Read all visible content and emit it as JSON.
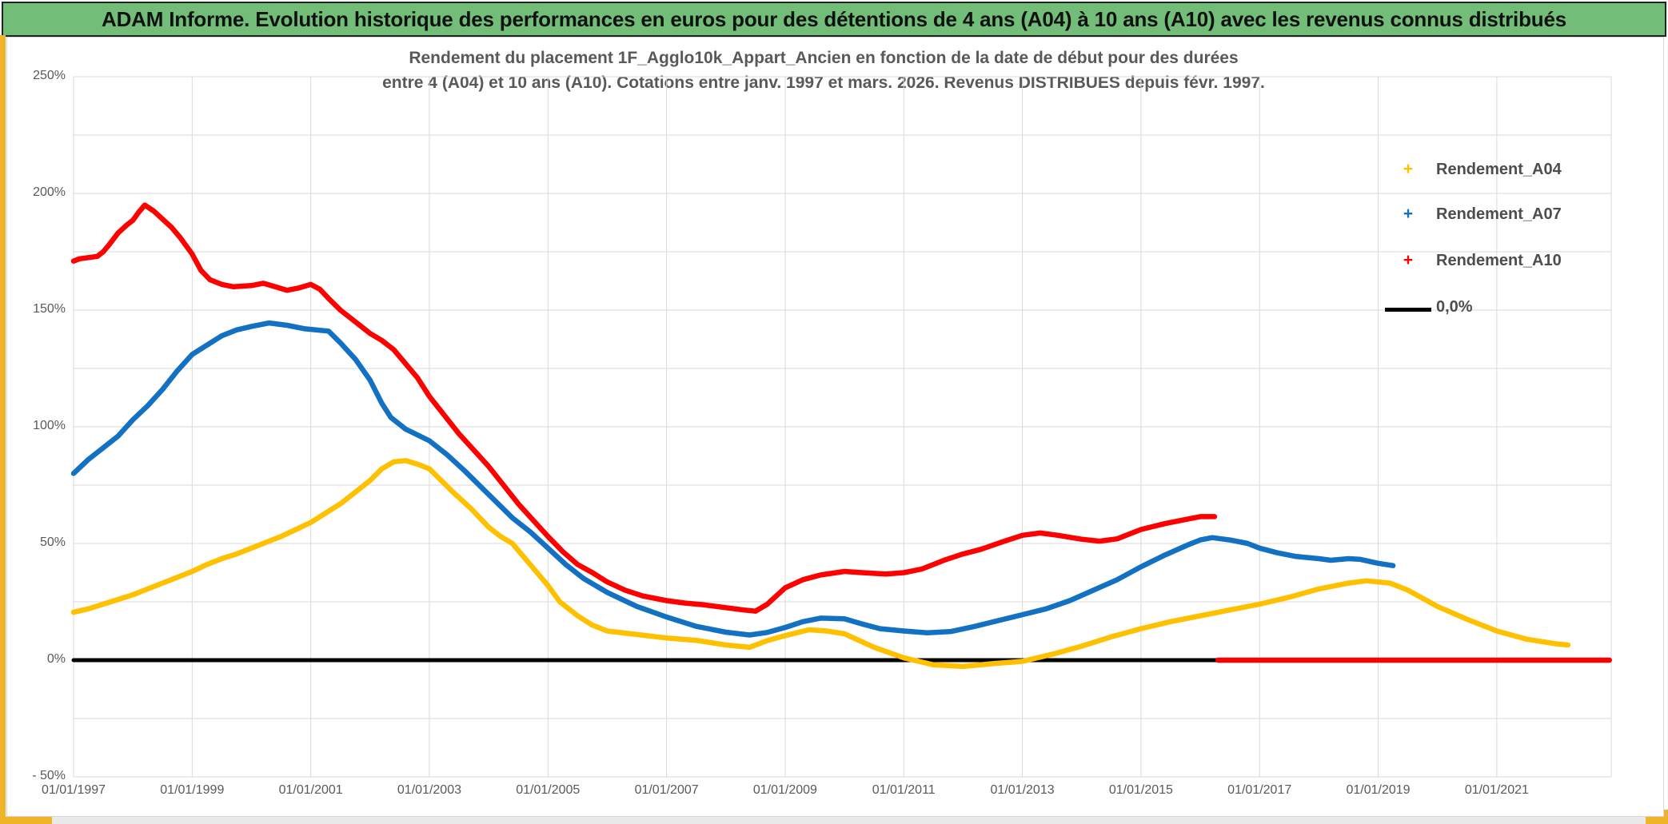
{
  "header": {
    "title": "ADAM Informe. Evolution historique des performances en euros pour des détentions de 4 ans (A04) à 10 ans (A10) avec les revenus connus distribués",
    "bg_color": "#72BE78",
    "border_color": "#222222"
  },
  "accent": {
    "yellow": "#F0B429",
    "frame_gray": "#D8D8D8"
  },
  "chart_data": {
    "type": "line",
    "title_line1": "Rendement du placement 1F_Agglo10k_Appart_Ancien en fonction de la date de début pour des durées",
    "title_line2": "entre 4 (A04) et 10 ans (A10). Cotations entre janv. 1997 et mars. 2026. Revenus DISTRIBUES depuis févr. 1997.",
    "title_color": "#595959",
    "grid_on": true,
    "grid_color": "#D9D9D9",
    "axis_text_color": "#595959",
    "x_axis": {
      "labels": [
        "01/01/1997",
        "01/01/1999",
        "01/01/2001",
        "01/01/2003",
        "01/01/2005",
        "01/01/2007",
        "01/01/2009",
        "01/01/2011",
        "01/01/2013",
        "01/01/2015",
        "01/01/2017",
        "01/01/2019",
        "01/01/2021"
      ],
      "label_years": [
        1997,
        1999,
        2001,
        2003,
        2005,
        2007,
        2009,
        2011,
        2013,
        2015,
        2017,
        2019,
        2021
      ],
      "range_years": [
        1997.0,
        2022.93
      ]
    },
    "y_axis": {
      "labels": [
        "250%",
        "200%",
        "150%",
        "100%",
        "50%",
        "0%",
        "- 50%"
      ],
      "label_values": [
        250,
        200,
        150,
        100,
        50,
        0,
        -50
      ],
      "range_pct": [
        -50,
        250
      ],
      "gridline_step_pct": 25
    },
    "legend_position": "right-top",
    "legend": [
      {
        "label": "Rendement_A04",
        "color": "#FFC000",
        "marker": "+"
      },
      {
        "label": "Rendement_A07",
        "color": "#1371C3",
        "marker": "+"
      },
      {
        "label": "Rendement_A10",
        "color": "#FE0000",
        "marker": "+"
      },
      {
        "label": "0,0%",
        "color": "#000000",
        "marker": "line"
      }
    ],
    "series": [
      {
        "name": "zero-line",
        "color": "#000000",
        "width": 5,
        "points": [
          [
            1997.0,
            0
          ],
          [
            2022.9,
            0
          ]
        ]
      },
      {
        "name": "Rendement_A04",
        "color": "#FFC000",
        "width": 6.5,
        "points": [
          [
            1997.0,
            20.5
          ],
          [
            1997.25,
            22
          ],
          [
            1997.5,
            24
          ],
          [
            1997.75,
            26
          ],
          [
            1998.0,
            28
          ],
          [
            1998.25,
            30.5
          ],
          [
            1998.5,
            33
          ],
          [
            1998.75,
            35.5
          ],
          [
            1999.0,
            38
          ],
          [
            1999.25,
            41
          ],
          [
            1999.5,
            43.5
          ],
          [
            1999.75,
            45.5
          ],
          [
            2000.0,
            48
          ],
          [
            2000.25,
            50.5
          ],
          [
            2000.5,
            53
          ],
          [
            2000.75,
            56
          ],
          [
            2001.0,
            59
          ],
          [
            2001.25,
            63
          ],
          [
            2001.5,
            67
          ],
          [
            2001.75,
            72
          ],
          [
            2002.0,
            77
          ],
          [
            2002.2,
            82
          ],
          [
            2002.4,
            85
          ],
          [
            2002.6,
            85.5
          ],
          [
            2002.8,
            84
          ],
          [
            2003.0,
            82
          ],
          [
            2003.2,
            77
          ],
          [
            2003.4,
            72
          ],
          [
            2003.7,
            65
          ],
          [
            2004.0,
            57
          ],
          [
            2004.2,
            53
          ],
          [
            2004.4,
            50
          ],
          [
            2004.7,
            41
          ],
          [
            2005.0,
            32
          ],
          [
            2005.2,
            25
          ],
          [
            2005.5,
            19
          ],
          [
            2005.75,
            15
          ],
          [
            2006.0,
            12.5
          ],
          [
            2006.5,
            11
          ],
          [
            2007.0,
            9.5
          ],
          [
            2007.5,
            8.5
          ],
          [
            2008.0,
            6.5
          ],
          [
            2008.4,
            5.5
          ],
          [
            2008.7,
            8.4
          ],
          [
            2009.0,
            10.5
          ],
          [
            2009.4,
            13
          ],
          [
            2009.7,
            12.5
          ],
          [
            2010.0,
            11.3
          ],
          [
            2010.5,
            5.5
          ],
          [
            2011.0,
            1
          ],
          [
            2011.5,
            -2
          ],
          [
            2012.0,
            -2.7
          ],
          [
            2012.5,
            -1.5
          ],
          [
            2013.0,
            -0.5
          ],
          [
            2013.5,
            2.5
          ],
          [
            2014.0,
            6
          ],
          [
            2014.5,
            10
          ],
          [
            2015.0,
            13.5
          ],
          [
            2015.5,
            16.5
          ],
          [
            2016.0,
            19
          ],
          [
            2016.5,
            21.5
          ],
          [
            2017.0,
            24
          ],
          [
            2017.5,
            27
          ],
          [
            2018.0,
            30.5
          ],
          [
            2018.5,
            33
          ],
          [
            2018.8,
            34
          ],
          [
            2019.2,
            33
          ],
          [
            2019.5,
            30
          ],
          [
            2020.0,
            23
          ],
          [
            2020.5,
            17.5
          ],
          [
            2021.0,
            12.5
          ],
          [
            2021.5,
            9
          ],
          [
            2022.0,
            7
          ],
          [
            2022.2,
            6.5
          ]
        ]
      },
      {
        "name": "Rendement_A07",
        "color": "#1371C3",
        "width": 6.5,
        "points": [
          [
            1997.0,
            80
          ],
          [
            1997.25,
            86
          ],
          [
            1997.5,
            91
          ],
          [
            1997.75,
            96
          ],
          [
            1998.0,
            103
          ],
          [
            1998.25,
            109
          ],
          [
            1998.5,
            116
          ],
          [
            1998.75,
            124
          ],
          [
            1999.0,
            131
          ],
          [
            1999.25,
            135
          ],
          [
            1999.5,
            139
          ],
          [
            1999.75,
            141.5
          ],
          [
            2000.0,
            143
          ],
          [
            2000.3,
            144.5
          ],
          [
            2000.6,
            143.5
          ],
          [
            2000.9,
            142
          ],
          [
            2001.3,
            141
          ],
          [
            2001.5,
            136
          ],
          [
            2001.75,
            129
          ],
          [
            2002.0,
            120
          ],
          [
            2002.2,
            110
          ],
          [
            2002.35,
            104
          ],
          [
            2002.6,
            99
          ],
          [
            2003.0,
            94
          ],
          [
            2003.3,
            88
          ],
          [
            2003.6,
            81
          ],
          [
            2004.0,
            71
          ],
          [
            2004.4,
            61
          ],
          [
            2004.7,
            55
          ],
          [
            2005.0,
            48
          ],
          [
            2005.3,
            41
          ],
          [
            2005.6,
            35
          ],
          [
            2006.0,
            29
          ],
          [
            2006.5,
            23
          ],
          [
            2007.0,
            18.5
          ],
          [
            2007.5,
            14.5
          ],
          [
            2008.0,
            12
          ],
          [
            2008.4,
            10.8
          ],
          [
            2008.7,
            11.9
          ],
          [
            2009.0,
            14
          ],
          [
            2009.3,
            16.5
          ],
          [
            2009.6,
            18
          ],
          [
            2010.0,
            17.7
          ],
          [
            2010.3,
            15.5
          ],
          [
            2010.6,
            13.5
          ],
          [
            2011.0,
            12.5
          ],
          [
            2011.4,
            11.7
          ],
          [
            2011.8,
            12.3
          ],
          [
            2012.2,
            14.5
          ],
          [
            2012.6,
            17
          ],
          [
            2013.0,
            19.5
          ],
          [
            2013.4,
            22
          ],
          [
            2013.8,
            25.5
          ],
          [
            2014.2,
            30
          ],
          [
            2014.6,
            34.5
          ],
          [
            2015.0,
            40
          ],
          [
            2015.4,
            45
          ],
          [
            2015.8,
            49.5
          ],
          [
            2016.0,
            51.5
          ],
          [
            2016.2,
            52.5
          ],
          [
            2016.5,
            51.5
          ],
          [
            2016.8,
            50
          ],
          [
            2017.0,
            48
          ],
          [
            2017.3,
            46
          ],
          [
            2017.6,
            44.5
          ],
          [
            2018.0,
            43.5
          ],
          [
            2018.2,
            42.8
          ],
          [
            2018.5,
            43.5
          ],
          [
            2018.7,
            43.2
          ],
          [
            2019.0,
            41.5
          ],
          [
            2019.25,
            40.5
          ]
        ]
      },
      {
        "name": "Rendement_A10",
        "color": "#FE0000",
        "width": 6.5,
        "points": [
          [
            1997.0,
            171
          ],
          [
            1997.1,
            172
          ],
          [
            1997.25,
            172.5
          ],
          [
            1997.4,
            173
          ],
          [
            1997.5,
            175
          ],
          [
            1997.6,
            178
          ],
          [
            1997.75,
            183
          ],
          [
            1997.9,
            186.5
          ],
          [
            1998.0,
            188.5
          ],
          [
            1998.1,
            192
          ],
          [
            1998.2,
            195
          ],
          [
            1998.35,
            192.5
          ],
          [
            1998.5,
            189
          ],
          [
            1998.65,
            185.5
          ],
          [
            1998.8,
            181
          ],
          [
            1999.0,
            174
          ],
          [
            1999.15,
            167
          ],
          [
            1999.3,
            163
          ],
          [
            1999.5,
            161
          ],
          [
            1999.7,
            160
          ],
          [
            2000.0,
            160.5
          ],
          [
            2000.2,
            161.5
          ],
          [
            2000.4,
            160
          ],
          [
            2000.6,
            158.5
          ],
          [
            2000.8,
            159.5
          ],
          [
            2001.0,
            161
          ],
          [
            2001.15,
            159
          ],
          [
            2001.3,
            155
          ],
          [
            2001.5,
            150
          ],
          [
            2001.75,
            145
          ],
          [
            2002.0,
            140
          ],
          [
            2002.2,
            137
          ],
          [
            2002.4,
            133
          ],
          [
            2002.6,
            127
          ],
          [
            2002.8,
            121
          ],
          [
            2003.0,
            113
          ],
          [
            2003.25,
            105
          ],
          [
            2003.5,
            97
          ],
          [
            2003.75,
            90
          ],
          [
            2004.0,
            83
          ],
          [
            2004.25,
            75
          ],
          [
            2004.5,
            67
          ],
          [
            2004.75,
            60
          ],
          [
            2005.0,
            53
          ],
          [
            2005.25,
            46.5
          ],
          [
            2005.5,
            41
          ],
          [
            2005.75,
            37.5
          ],
          [
            2006.0,
            33.5
          ],
          [
            2006.3,
            30
          ],
          [
            2006.6,
            27.5
          ],
          [
            2007.0,
            25.5
          ],
          [
            2007.3,
            24.5
          ],
          [
            2007.6,
            23.8
          ],
          [
            2008.0,
            22.5
          ],
          [
            2008.3,
            21.5
          ],
          [
            2008.5,
            21
          ],
          [
            2008.7,
            24
          ],
          [
            2009.0,
            31
          ],
          [
            2009.3,
            34.5
          ],
          [
            2009.6,
            36.5
          ],
          [
            2010.0,
            38
          ],
          [
            2010.3,
            37.5
          ],
          [
            2010.7,
            36.9
          ],
          [
            2011.0,
            37.5
          ],
          [
            2011.3,
            39
          ],
          [
            2011.7,
            43
          ],
          [
            2012.0,
            45.5
          ],
          [
            2012.3,
            47.5
          ],
          [
            2012.7,
            51
          ],
          [
            2013.0,
            53.5
          ],
          [
            2013.3,
            54.5
          ],
          [
            2013.6,
            53.5
          ],
          [
            2014.0,
            51.8
          ],
          [
            2014.3,
            51
          ],
          [
            2014.6,
            52
          ],
          [
            2015.0,
            56
          ],
          [
            2015.4,
            58.5
          ],
          [
            2015.8,
            60.5
          ],
          [
            2016.0,
            61.5
          ],
          [
            2016.24,
            61.5
          ]
        ]
      },
      {
        "name": "Rendement_A10-flat-zero",
        "color": "#FE0000",
        "width": 6.5,
        "points": [
          [
            2016.3,
            0
          ],
          [
            2022.9,
            0
          ]
        ]
      }
    ]
  }
}
